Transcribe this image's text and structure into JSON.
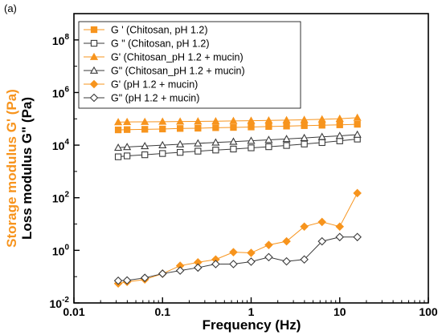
{
  "panel_label": "(a)",
  "chart_data": {
    "type": "scatter",
    "title": "",
    "xlabel": "Frequency (Hz)",
    "ylabel_storage": "Storage modulus G' (Pa)",
    "ylabel_loss": "Loss modulus G\" (Pa)",
    "xscale": "log",
    "yscale": "log",
    "xlim": [
      0.01,
      100
    ],
    "ylim": [
      0.01,
      1000000000
    ],
    "x_ticks": [
      {
        "value": 0.01,
        "label": "0.01"
      },
      {
        "value": 0.1,
        "label": "0.1"
      },
      {
        "value": 1,
        "label": "1"
      },
      {
        "value": 10,
        "label": "10"
      },
      {
        "value": 100,
        "label": "100"
      }
    ],
    "y_ticks": [
      {
        "value": 0.01,
        "base": "10",
        "exp": "-2"
      },
      {
        "value": 1,
        "base": "10",
        "exp": "0"
      },
      {
        "value": 100,
        "base": "10",
        "exp": "2"
      },
      {
        "value": 10000,
        "base": "10",
        "exp": "4"
      },
      {
        "value": 1000000,
        "base": "10",
        "exp": "6"
      },
      {
        "value": 100000000,
        "base": "10",
        "exp": "8"
      }
    ],
    "grid": false,
    "legend_position": "top-left",
    "colors": {
      "orange": "#f7941d",
      "dark": "#3a3a3a",
      "axis": "#000000"
    },
    "series": [
      {
        "name": "G ' (Chitosan, pH 1.2)",
        "marker": "square",
        "filled": true,
        "color": "#f7941d",
        "x": [
          0.0316,
          0.0398,
          0.0631,
          0.1,
          0.158,
          0.251,
          0.398,
          0.631,
          1,
          1.58,
          2.51,
          3.98,
          6.31,
          10,
          15.8
        ],
        "y": [
          38000,
          39000,
          40000,
          41000,
          43000,
          44000,
          46000,
          47000,
          49000,
          51000,
          53000,
          55000,
          57000,
          59000,
          62000
        ]
      },
      {
        "name": "G \" (Chitosan, pH 1.2)",
        "marker": "square",
        "filled": false,
        "color": "#3a3a3a",
        "x": [
          0.0316,
          0.0398,
          0.0631,
          0.1,
          0.158,
          0.251,
          0.398,
          0.631,
          1,
          1.58,
          2.51,
          3.98,
          6.31,
          10,
          15.8
        ],
        "y": [
          3600,
          3900,
          4300,
          4800,
          5300,
          5900,
          6500,
          7100,
          7900,
          8700,
          9700,
          11000,
          12500,
          14500,
          17000
        ]
      },
      {
        "name": "G' (Chitosan_pH 1.2 + mucin)",
        "marker": "triangle",
        "filled": true,
        "color": "#f7941d",
        "x": [
          0.0316,
          0.0398,
          0.0631,
          0.1,
          0.158,
          0.251,
          0.398,
          0.631,
          1,
          1.58,
          2.51,
          3.98,
          6.31,
          10,
          15.8
        ],
        "y": [
          75000,
          76000,
          77000,
          78000,
          79000,
          80000,
          81000,
          83000,
          85000,
          87000,
          89000,
          92000,
          96000,
          101000,
          110000
        ]
      },
      {
        "name": "G\" (Chitosan_pH 1.2 + mucin)",
        "marker": "triangle",
        "filled": false,
        "color": "#3a3a3a",
        "x": [
          0.0316,
          0.0398,
          0.0631,
          0.1,
          0.158,
          0.251,
          0.398,
          0.631,
          1,
          1.58,
          2.51,
          3.98,
          6.31,
          10,
          15.8
        ],
        "y": [
          8000,
          8500,
          9200,
          10000,
          10800,
          11700,
          12600,
          13600,
          14700,
          15900,
          17200,
          18800,
          20600,
          22500,
          25000
        ]
      },
      {
        "name": "G' (pH 1.2 + mucin)",
        "marker": "diamond",
        "filled": true,
        "color": "#f7941d",
        "x": [
          0.0316,
          0.0398,
          0.0631,
          0.1,
          0.158,
          0.251,
          0.398,
          0.631,
          1,
          1.58,
          2.51,
          3.98,
          6.31,
          10,
          15.8
        ],
        "y": [
          0.055,
          0.063,
          0.078,
          0.13,
          0.26,
          0.35,
          0.45,
          0.85,
          0.8,
          1.6,
          2.2,
          8,
          12,
          8,
          150
        ]
      },
      {
        "name": "G\" (pH 1.2 + mucin)",
        "marker": "diamond",
        "filled": false,
        "color": "#3a3a3a",
        "x": [
          0.0316,
          0.0398,
          0.0631,
          0.1,
          0.158,
          0.251,
          0.398,
          0.631,
          1,
          1.58,
          2.51,
          3.98,
          6.31,
          10,
          15.8
        ],
        "y": [
          0.07,
          0.072,
          0.09,
          0.13,
          0.17,
          0.22,
          0.3,
          0.3,
          0.37,
          0.55,
          0.38,
          0.45,
          2.2,
          3.2,
          3.2
        ]
      }
    ]
  }
}
